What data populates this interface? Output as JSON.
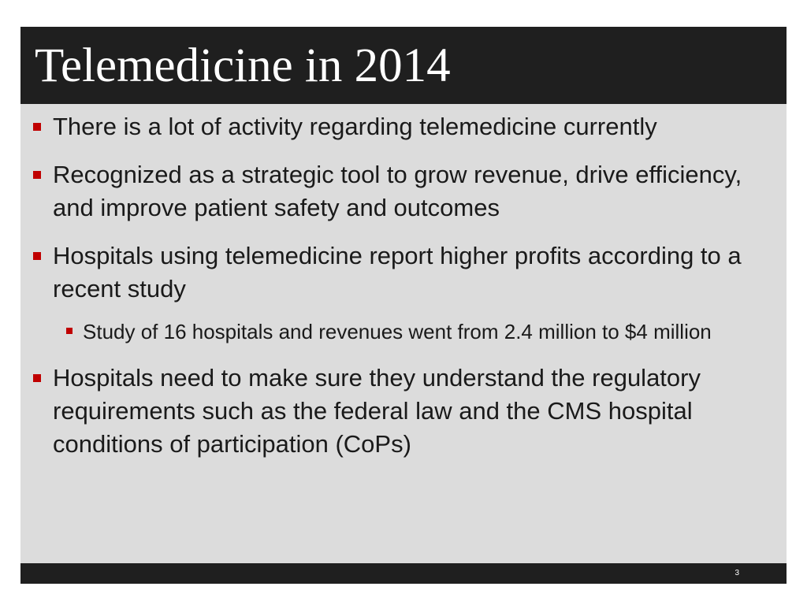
{
  "slide": {
    "title": "Telemedicine in 2014",
    "bullets": [
      {
        "level": 1,
        "text": "There is a lot of activity regarding telemedicine currently"
      },
      {
        "level": 1,
        "text": "Recognized as a strategic tool to grow revenue, drive efficiency, and improve patient safety and outcomes"
      },
      {
        "level": 1,
        "text": "Hospitals using telemedicine report higher profits according to a recent study"
      },
      {
        "level": 2,
        "text": "Study of 16 hospitals and revenues went from 2.4 million to $4 million"
      },
      {
        "level": 1,
        "text": "Hospitals need to make sure they understand the regulatory requirements such as the federal law and the CMS hospital conditions of participation (CoPs)"
      }
    ],
    "page_number": "3"
  },
  "colors": {
    "title_bar": "#1f1f1f",
    "background": "#dcdcdc",
    "bullet_marker": "#c00000",
    "body_text": "#1a1a1a"
  },
  "icons": {
    "bullet": "square-bullet-icon"
  }
}
